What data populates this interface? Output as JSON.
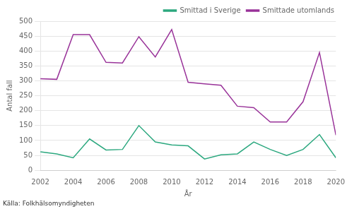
{
  "chart_data": {
    "type": "line",
    "x": [
      2002,
      2003,
      2004,
      2005,
      2006,
      2007,
      2008,
      2009,
      2010,
      2011,
      2012,
      2013,
      2014,
      2015,
      2016,
      2017,
      2018,
      2019,
      2020
    ],
    "series": [
      {
        "name": "Smittad i Sverige",
        "color": "#2ca87f",
        "values": [
          62,
          55,
          42,
          105,
          68,
          70,
          150,
          95,
          85,
          82,
          38,
          52,
          55,
          95,
          70,
          50,
          70,
          120,
          42
        ]
      },
      {
        "name": "Smittade utomlands",
        "color": "#993399",
        "values": [
          307,
          305,
          455,
          455,
          362,
          360,
          448,
          380,
          472,
          295,
          290,
          285,
          215,
          210,
          162,
          162,
          230,
          395,
          118
        ]
      }
    ],
    "xlabel": "År",
    "ylabel": "Antal fall",
    "annotations": [
      "Källa: Folkhälsomyndigheten"
    ],
    "xlim": [
      2002,
      2020
    ],
    "xticks": [
      2002,
      2004,
      2006,
      2008,
      2010,
      2012,
      2014,
      2016,
      2018,
      2020
    ],
    "ylim": [
      0,
      500
    ],
    "yticks": [
      0,
      50,
      100,
      150,
      200,
      250,
      300,
      350,
      400,
      450,
      500
    ],
    "grid": "y",
    "legend": "upper right"
  }
}
